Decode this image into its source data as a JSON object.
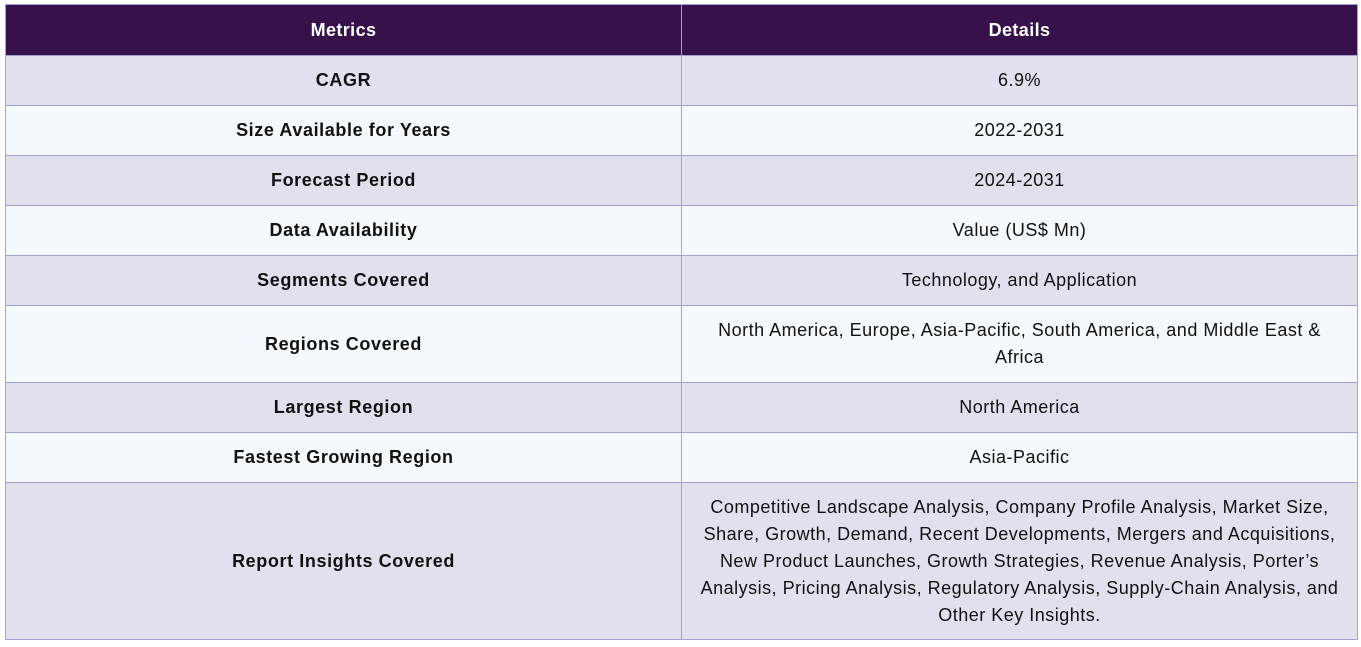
{
  "table": {
    "headers": [
      "Metrics",
      "Details"
    ],
    "rows": [
      {
        "metric": "CAGR",
        "detail": "6.9%"
      },
      {
        "metric": "Size Available for Years",
        "detail": "2022-2031"
      },
      {
        "metric": "Forecast Period",
        "detail": "2024-2031"
      },
      {
        "metric": "Data Availability",
        "detail": "Value (US$ Mn)"
      },
      {
        "metric": "Segments Covered",
        "detail": "Technology, and Application"
      },
      {
        "metric": "Regions Covered",
        "detail": "North America, Europe, Asia-Pacific, South America, and Middle East & Africa"
      },
      {
        "metric": "Largest Region",
        "detail": "North America"
      },
      {
        "metric": "Fastest Growing Region",
        "detail": "Asia-Pacific"
      },
      {
        "metric": "Report Insights Covered",
        "detail": "Competitive Landscape Analysis, Company Profile Analysis, Market Size, Share, Growth, Demand, Recent Developments, Mergers and Acquisitions, New Product Launches, Growth Strategies, Revenue Analysis, Porter’s Analysis, Pricing Analysis, Regulatory Analysis, Supply-Chain Analysis, and Other Key Insights."
      }
    ]
  },
  "colors": {
    "header_bg": "#36114a",
    "row_odd_bg": "#e3e0ed",
    "row_even_bg": "#f3f9fc",
    "border": "#a9a1cc"
  }
}
